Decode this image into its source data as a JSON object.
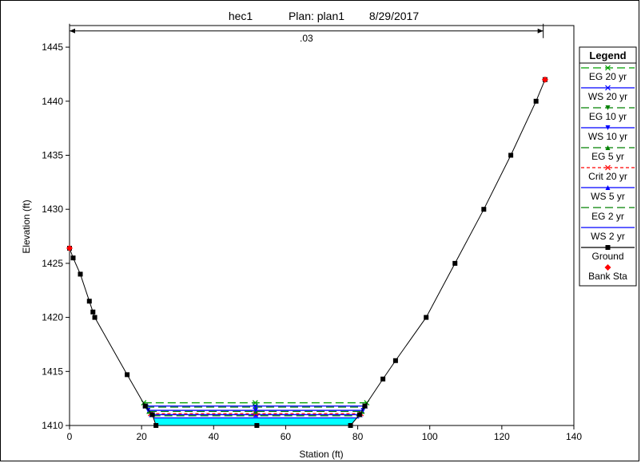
{
  "chart_data": {
    "type": "line",
    "title": {
      "name": "hec1",
      "plan": "Plan: plan1",
      "date": "8/29/2017"
    },
    "xlabel": "Station (ft)",
    "ylabel": "Elevation (ft)",
    "xlim": [
      0,
      140
    ],
    "ylim": [
      1410,
      1447
    ],
    "xticks": [
      0,
      20,
      40,
      60,
      80,
      100,
      120,
      140
    ],
    "yticks": [
      1410,
      1415,
      1420,
      1425,
      1430,
      1435,
      1440,
      1445
    ],
    "grid": false,
    "legend_position": "right",
    "annotation": {
      "label": ".03",
      "x_start": 0,
      "x_end": 131.5,
      "y": 1446.5
    },
    "ground": {
      "name": "Ground",
      "x": [
        0,
        1,
        3,
        5.5,
        6.5,
        7,
        16,
        21,
        23,
        24,
        52,
        78,
        80.5,
        82,
        87,
        90.5,
        99,
        107,
        115,
        122.5,
        129.5,
        132
      ],
      "y": [
        1426.4,
        1425.5,
        1424,
        1421.5,
        1420.5,
        1420,
        1414.7,
        1411.8,
        1411,
        1410,
        1410,
        1410,
        1411,
        1411.8,
        1414.3,
        1416,
        1420,
        1425,
        1430,
        1435,
        1440,
        1442
      ]
    },
    "bank_stations": {
      "name": "Bank Sta",
      "x": [
        0,
        132
      ],
      "y": [
        1426.4,
        1442
      ]
    },
    "water_surfaces": [
      {
        "name": "EG 20 yr",
        "color": "#00a000",
        "dash": "10,5",
        "marker": "x",
        "elev": 1412.1,
        "x_left": 20.6,
        "x_right": 82.5
      },
      {
        "name": "WS 20 yr",
        "color": "#0000ff",
        "dash": "",
        "marker": "x",
        "elev": 1411.8,
        "x_left": 21.1,
        "x_right": 82
      },
      {
        "name": "EG 10 yr",
        "color": "#008000",
        "dash": "10,5",
        "marker": "tri-down",
        "elev": 1411.7,
        "x_left": 21.3,
        "x_right": 81.9
      },
      {
        "name": "WS 10 yr",
        "color": "#0000ff",
        "dash": "",
        "marker": "tri-down",
        "elev": 1411.4,
        "x_left": 21.8,
        "x_right": 81.5
      },
      {
        "name": "EG 5 yr",
        "color": "#008000",
        "dash": "10,5",
        "marker": "tri-up",
        "elev": 1411.3,
        "x_left": 22,
        "x_right": 81.3
      },
      {
        "name": "Crit 20 yr",
        "color": "#ff0000",
        "dash": "4,3",
        "marker": "x",
        "elev": 1411.1,
        "x_left": 22.5,
        "x_right": 80.9
      },
      {
        "name": "WS 5 yr",
        "color": "#0000ff",
        "dash": "",
        "marker": "tri-up",
        "elev": 1411,
        "x_left": 22.7,
        "x_right": 80.7
      },
      {
        "name": "EG 2 yr",
        "color": "#008000",
        "dash": "10,5",
        "marker": "none",
        "elev": 1410.9,
        "x_left": 23,
        "x_right": 80.6
      },
      {
        "name": "WS 2 yr",
        "color": "#0000ff",
        "dash": "",
        "marker": "none",
        "elev": 1410.7,
        "x_left": 23.2,
        "x_right": 80.4
      }
    ],
    "water_fill": {
      "color": "#00ffff",
      "elev": 1410.7
    },
    "legend": {
      "title": "Legend",
      "entries": [
        {
          "label": "EG 20 yr",
          "color": "#00a000",
          "dash": "10,5",
          "marker": "x"
        },
        {
          "label": "WS 20 yr",
          "color": "#0000ff",
          "dash": "",
          "marker": "x"
        },
        {
          "label": "EG 10 yr",
          "color": "#008000",
          "dash": "10,5",
          "marker": "tri-down"
        },
        {
          "label": "WS 10 yr",
          "color": "#0000ff",
          "dash": "",
          "marker": "tri-down"
        },
        {
          "label": "EG 5 yr",
          "color": "#008000",
          "dash": "10,5",
          "marker": "tri-up"
        },
        {
          "label": "Crit 20 yr",
          "color": "#ff0000",
          "dash": "4,3",
          "marker": "x"
        },
        {
          "label": "WS 5 yr",
          "color": "#0000ff",
          "dash": "",
          "marker": "tri-up"
        },
        {
          "label": "EG 2 yr",
          "color": "#008000",
          "dash": "10,5",
          "marker": "none"
        },
        {
          "label": "WS 2 yr",
          "color": "#0000ff",
          "dash": "",
          "marker": "none"
        },
        {
          "label": "Ground",
          "color": "#000000",
          "dash": "",
          "marker": "square"
        },
        {
          "label": "Bank Sta",
          "color": "#ff0000",
          "dash": "",
          "marker": "diamond",
          "no_line": true
        }
      ]
    }
  }
}
